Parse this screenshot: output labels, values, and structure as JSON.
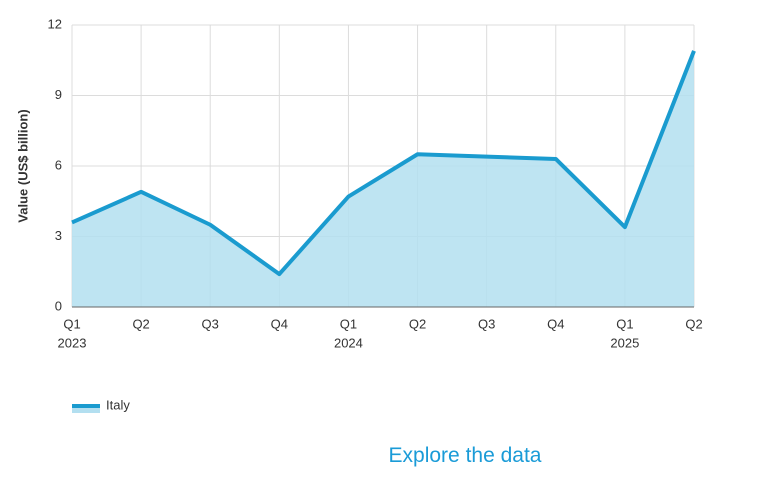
{
  "chart_data": {
    "type": "area",
    "y_label": "Value (US$ billion)",
    "categories": [
      "Q1",
      "Q2",
      "Q3",
      "Q4",
      "Q1",
      "Q2",
      "Q3",
      "Q4",
      "Q1",
      "Q2"
    ],
    "category_years": [
      "2023",
      null,
      null,
      null,
      "2024",
      null,
      null,
      null,
      "2025",
      null
    ],
    "series": [
      {
        "name": "Italy",
        "color": "#1a9bcf",
        "fill": "#b3dff0",
        "values": [
          3.6,
          4.9,
          3.5,
          1.4,
          4.7,
          6.5,
          6.4,
          6.3,
          3.4,
          10.9
        ]
      }
    ],
    "ylim": [
      0,
      12
    ],
    "yticks": [
      0,
      3,
      6,
      9,
      12
    ],
    "grid": true,
    "legend": "bottom-left"
  },
  "link": "Explore the data"
}
